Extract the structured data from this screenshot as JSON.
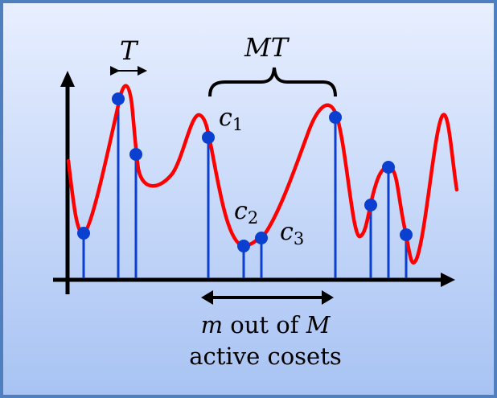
{
  "labels": {
    "period": "T",
    "span": "MT",
    "c1": "c",
    "c1_sub": "1",
    "c2": "c",
    "c2_sub": "2",
    "c3": "c",
    "c3_sub": "3",
    "caption_line1_var": "m",
    "caption_line1_mid": " out of ",
    "caption_line1_var2": "M",
    "caption_line2": "active cosets"
  },
  "colors": {
    "curve": "#ff0000",
    "samples": "#0b3fcf",
    "axes": "#000000",
    "border": "#4f7fbf"
  }
}
